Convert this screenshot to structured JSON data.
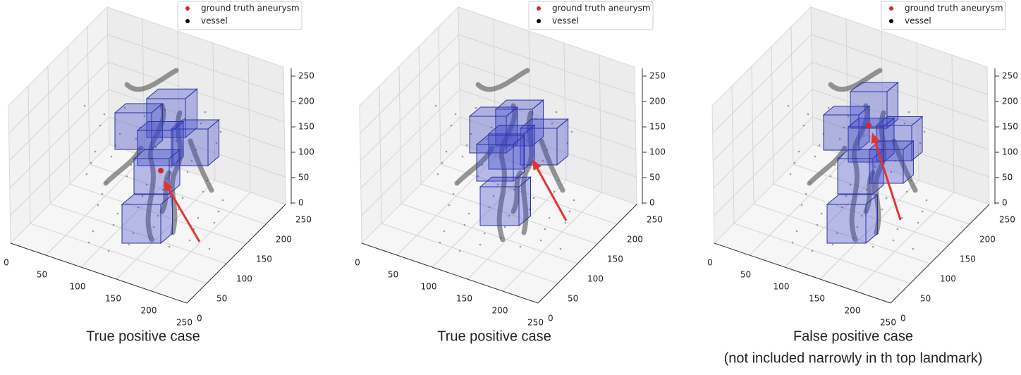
{
  "panels": [
    {
      "legend": [
        "ground truth aneurysm",
        "vessel"
      ],
      "x_ticks": [
        0,
        50,
        100,
        150,
        200,
        250
      ],
      "y_ticks": [
        0,
        50,
        100,
        150,
        200,
        250
      ],
      "z_ticks": [
        0,
        50,
        100,
        150,
        200,
        250
      ],
      "caption": [
        "True positive case"
      ]
    },
    {
      "legend": [
        "ground truth aneurysm",
        "vessel"
      ],
      "x_ticks": [
        0,
        50,
        100,
        150,
        200,
        250
      ],
      "y_ticks": [
        0,
        50,
        100,
        150,
        200,
        250
      ],
      "z_ticks": [
        0,
        50,
        100,
        150,
        200,
        250
      ],
      "caption": [
        "True positive case"
      ]
    },
    {
      "legend": [
        "ground truth aneurysm",
        "vessel"
      ],
      "x_ticks": [
        0,
        50,
        100,
        150,
        200,
        250
      ],
      "y_ticks": [
        0,
        50,
        100,
        150,
        200,
        250
      ],
      "z_ticks": [
        0,
        50,
        100,
        150,
        200,
        250
      ],
      "caption": [
        "False positive case",
        "(not included narrowly in th top landmark)"
      ]
    }
  ]
}
